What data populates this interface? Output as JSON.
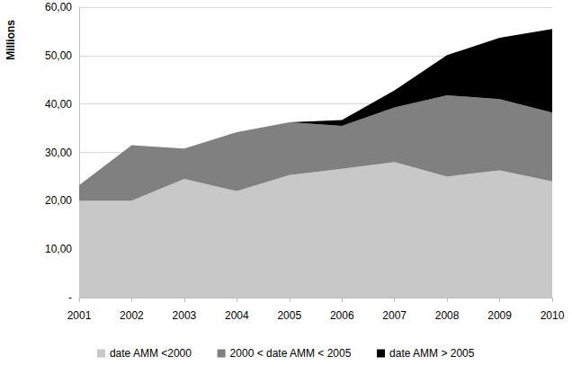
{
  "chart_data": {
    "type": "stacked_area",
    "y_label": "Millions",
    "categories": [
      "2001",
      "2002",
      "2003",
      "2004",
      "2005",
      "2006",
      "2007",
      "2008",
      "2009",
      "2010"
    ],
    "series": [
      {
        "name": "date AMM <2000",
        "color": "#c8c8c8",
        "values": [
          20,
          20,
          24.5,
          22,
          25.3,
          26.6,
          28,
          25,
          26.3,
          24
        ]
      },
      {
        "name": "2000 < date AMM < 2005",
        "color": "#808080",
        "values": [
          3.2,
          11.5,
          6.3,
          12.2,
          10.9,
          8.9,
          11.3,
          16.8,
          14.7,
          14.2
        ]
      },
      {
        "name": "date AMM > 2005",
        "color": "#000000",
        "values": [
          0,
          0,
          0,
          0,
          0,
          1.2,
          3.5,
          8.3,
          12.7,
          17.3
        ]
      }
    ],
    "stacked": true,
    "ylim": [
      0,
      60
    ],
    "yticks": [
      {
        "value": 0,
        "label": "-"
      },
      {
        "value": 10,
        "label": "10,00"
      },
      {
        "value": 20,
        "label": "20,00"
      },
      {
        "value": 30,
        "label": "30,00"
      },
      {
        "value": 40,
        "label": "40,00"
      },
      {
        "value": 50,
        "label": "50,00"
      },
      {
        "value": 60,
        "label": "60,00"
      }
    ],
    "grid": true,
    "legend": "bottom"
  }
}
